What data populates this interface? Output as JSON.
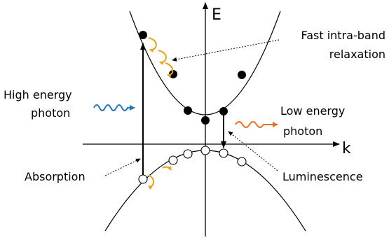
{
  "labels": {
    "energy_axis": "E",
    "momentum_axis": "k",
    "fast_relaxation_line1": "Fast intra-band",
    "fast_relaxation_line2": "relaxation",
    "high_energy_line1": "High energy",
    "high_energy_line2": "photon",
    "low_energy_line1": "Low energy",
    "low_energy_line2": "photon",
    "absorption": "Absorption",
    "luminescence": "Luminescence"
  },
  "colors": {
    "high_energy_photon": "#1f77b4",
    "low_energy_photon": "#e8701c",
    "relaxation_arrows": "#e8a317",
    "lines": "#000000"
  }
}
